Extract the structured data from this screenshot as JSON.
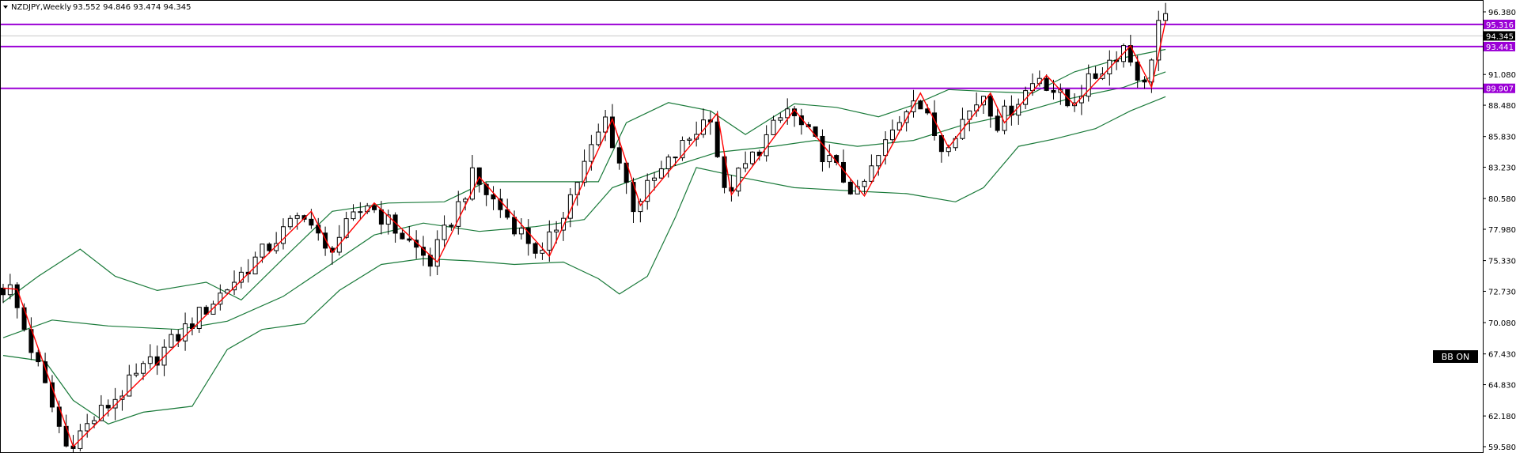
{
  "header": {
    "symbol_timeframe": "NZDJPY,Weekly",
    "ohlc": "93.552 94.846 93.474 94.345"
  },
  "badge": {
    "label": "BB ON"
  },
  "colors": {
    "level_line": "#9b00d6",
    "zigzag": "#ff0000",
    "bands": "#1a7a3a",
    "candle": "#000000",
    "price_box": "#000000",
    "grid": "#c8c8c8"
  },
  "chart_data": {
    "type": "candlestick",
    "title": "NZDJPY,Weekly",
    "ylim": [
      58.8,
      97.2
    ],
    "y_ticks": [
      59.58,
      62.18,
      64.83,
      67.43,
      70.08,
      72.73,
      75.33,
      77.98,
      80.58,
      83.23,
      85.83,
      88.48,
      91.08,
      96.38
    ],
    "y_tick_labels": [
      "59.580",
      "62.180",
      "64.830",
      "67.430",
      "70.080",
      "72.730",
      "75.330",
      "77.980",
      "80.580",
      "83.230",
      "85.830",
      "88.480",
      "91.080",
      "96.380"
    ],
    "horizontal_levels": [
      {
        "value": 95.316,
        "label": "95.316"
      },
      {
        "value": 93.441,
        "label": "93.441"
      },
      {
        "value": 89.907,
        "label": "89.907"
      }
    ],
    "last_price": {
      "value": 94.345,
      "label": "94.345"
    },
    "grid": false,
    "bar_count": 202,
    "zigzag_pivots": [
      {
        "bar": 0,
        "price": 73.0
      },
      {
        "bar": 2,
        "price": 72.9
      },
      {
        "bar": 10,
        "price": 59.6
      },
      {
        "bar": 44,
        "price": 79.5
      },
      {
        "bar": 47,
        "price": 76.0
      },
      {
        "bar": 53,
        "price": 80.2
      },
      {
        "bar": 62,
        "price": 75.2
      },
      {
        "bar": 68,
        "price": 82.4
      },
      {
        "bar": 78,
        "price": 75.7
      },
      {
        "bar": 87,
        "price": 87.3
      },
      {
        "bar": 91,
        "price": 80.0
      },
      {
        "bar": 102,
        "price": 87.8
      },
      {
        "bar": 104,
        "price": 80.9
      },
      {
        "bar": 113,
        "price": 88.1
      },
      {
        "bar": 123,
        "price": 80.8
      },
      {
        "bar": 131,
        "price": 89.5
      },
      {
        "bar": 135,
        "price": 84.9
      },
      {
        "bar": 141,
        "price": 89.5
      },
      {
        "bar": 143,
        "price": 87.0
      },
      {
        "bar": 149,
        "price": 91.0
      },
      {
        "bar": 153,
        "price": 88.5
      },
      {
        "bar": 161,
        "price": 93.5
      },
      {
        "bar": 164,
        "price": 90.0
      },
      {
        "bar": 166,
        "price": 95.6
      }
    ],
    "mid_band_path": [
      {
        "bar": 0,
        "price": 68.8
      },
      {
        "bar": 7,
        "price": 70.3
      },
      {
        "bar": 15,
        "price": 69.8
      },
      {
        "bar": 25,
        "price": 69.5
      },
      {
        "bar": 32,
        "price": 70.2
      },
      {
        "bar": 40,
        "price": 72.3
      },
      {
        "bar": 48,
        "price": 75.5
      },
      {
        "bar": 53,
        "price": 77.5
      },
      {
        "bar": 60,
        "price": 78.5
      },
      {
        "bar": 68,
        "price": 77.8
      },
      {
        "bar": 76,
        "price": 78.2
      },
      {
        "bar": 83,
        "price": 78.8
      },
      {
        "bar": 87,
        "price": 81.5
      },
      {
        "bar": 94,
        "price": 83.0
      },
      {
        "bar": 102,
        "price": 84.5
      },
      {
        "bar": 110,
        "price": 85.0
      },
      {
        "bar": 116,
        "price": 85.5
      },
      {
        "bar": 122,
        "price": 85.0
      },
      {
        "bar": 130,
        "price": 85.5
      },
      {
        "bar": 137,
        "price": 86.8
      },
      {
        "bar": 145,
        "price": 87.8
      },
      {
        "bar": 152,
        "price": 89.0
      },
      {
        "bar": 160,
        "price": 90.0
      },
      {
        "bar": 166,
        "price": 91.3
      }
    ],
    "upper_band_path": [
      {
        "bar": 0,
        "price": 71.8
      },
      {
        "bar": 5,
        "price": 74.0
      },
      {
        "bar": 11,
        "price": 76.3
      },
      {
        "bar": 16,
        "price": 74.0
      },
      {
        "bar": 22,
        "price": 72.8
      },
      {
        "bar": 29,
        "price": 73.5
      },
      {
        "bar": 34,
        "price": 72.0
      },
      {
        "bar": 40,
        "price": 75.5
      },
      {
        "bar": 47,
        "price": 79.5
      },
      {
        "bar": 55,
        "price": 80.2
      },
      {
        "bar": 63,
        "price": 80.3
      },
      {
        "bar": 69,
        "price": 82.0
      },
      {
        "bar": 78,
        "price": 82.0
      },
      {
        "bar": 85,
        "price": 82.0
      },
      {
        "bar": 89,
        "price": 87.0
      },
      {
        "bar": 95,
        "price": 88.7
      },
      {
        "bar": 101,
        "price": 88.0
      },
      {
        "bar": 106,
        "price": 86.0
      },
      {
        "bar": 113,
        "price": 88.6
      },
      {
        "bar": 119,
        "price": 88.3
      },
      {
        "bar": 125,
        "price": 87.5
      },
      {
        "bar": 130,
        "price": 88.5
      },
      {
        "bar": 135,
        "price": 89.8
      },
      {
        "bar": 142,
        "price": 89.6
      },
      {
        "bar": 147,
        "price": 89.5
      },
      {
        "bar": 153,
        "price": 91.3
      },
      {
        "bar": 160,
        "price": 92.5
      },
      {
        "bar": 166,
        "price": 93.2
      }
    ],
    "lower_band_path": [
      {
        "bar": 0,
        "price": 67.3
      },
      {
        "bar": 6,
        "price": 66.8
      },
      {
        "bar": 10,
        "price": 63.5
      },
      {
        "bar": 15,
        "price": 61.5
      },
      {
        "bar": 20,
        "price": 62.5
      },
      {
        "bar": 27,
        "price": 63.0
      },
      {
        "bar": 32,
        "price": 67.8
      },
      {
        "bar": 37,
        "price": 69.5
      },
      {
        "bar": 43,
        "price": 70.0
      },
      {
        "bar": 48,
        "price": 72.8
      },
      {
        "bar": 54,
        "price": 75.0
      },
      {
        "bar": 60,
        "price": 75.5
      },
      {
        "bar": 67,
        "price": 75.3
      },
      {
        "bar": 73,
        "price": 75.0
      },
      {
        "bar": 80,
        "price": 75.2
      },
      {
        "bar": 85,
        "price": 73.8
      },
      {
        "bar": 88,
        "price": 72.5
      },
      {
        "bar": 92,
        "price": 74.0
      },
      {
        "bar": 96,
        "price": 79.0
      },
      {
        "bar": 99,
        "price": 83.2
      },
      {
        "bar": 106,
        "price": 82.3
      },
      {
        "bar": 113,
        "price": 81.5
      },
      {
        "bar": 122,
        "price": 81.2
      },
      {
        "bar": 129,
        "price": 81.0
      },
      {
        "bar": 136,
        "price": 80.3
      },
      {
        "bar": 140,
        "price": 81.5
      },
      {
        "bar": 145,
        "price": 85.0
      },
      {
        "bar": 150,
        "price": 85.6
      },
      {
        "bar": 156,
        "price": 86.5
      },
      {
        "bar": 161,
        "price": 88.0
      },
      {
        "bar": 166,
        "price": 89.2
      }
    ]
  }
}
